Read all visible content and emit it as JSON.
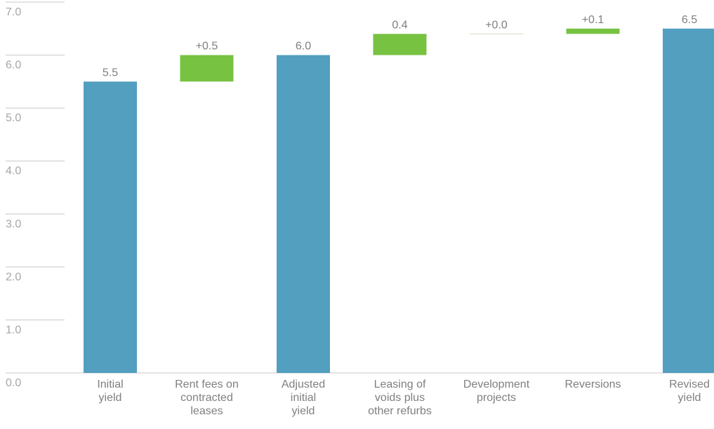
{
  "chart_data": {
    "type": "bar",
    "subtype": "waterfall",
    "title": "",
    "xlabel": "",
    "ylabel": "",
    "ylim": [
      0,
      7
    ],
    "grid": true,
    "yticks": [
      "0.0",
      "1.0",
      "2.0",
      "3.0",
      "4.0",
      "5.0",
      "6.0",
      "7.0"
    ],
    "categories": [
      [
        "Initial",
        "yield"
      ],
      [
        "Rent fees on",
        "contracted",
        "leases"
      ],
      [
        "Adjusted",
        "initial",
        "yield"
      ],
      [
        "Leasing of",
        "voids plus",
        "other refurbs"
      ],
      [
        "Development",
        "projects"
      ],
      [
        "Reversions"
      ],
      [
        "Revised",
        "yield"
      ]
    ],
    "bars": [
      {
        "kind": "total",
        "base": 0,
        "value": 5.5,
        "label": "5.5"
      },
      {
        "kind": "increment",
        "base": 5.5,
        "value": 0.5,
        "label": "+0.5"
      },
      {
        "kind": "total",
        "base": 0,
        "value": 6.0,
        "label": "6.0"
      },
      {
        "kind": "increment",
        "base": 6.0,
        "value": 0.4,
        "label": "0.4"
      },
      {
        "kind": "increment",
        "base": 6.4,
        "value": 0.0,
        "label": "+0.0"
      },
      {
        "kind": "increment",
        "base": 6.4,
        "value": 0.1,
        "label": "+0.1"
      },
      {
        "kind": "total",
        "base": 0,
        "value": 6.5,
        "label": "6.5"
      }
    ],
    "colors": {
      "total": "#529fc0",
      "increment": "#78c242"
    }
  }
}
